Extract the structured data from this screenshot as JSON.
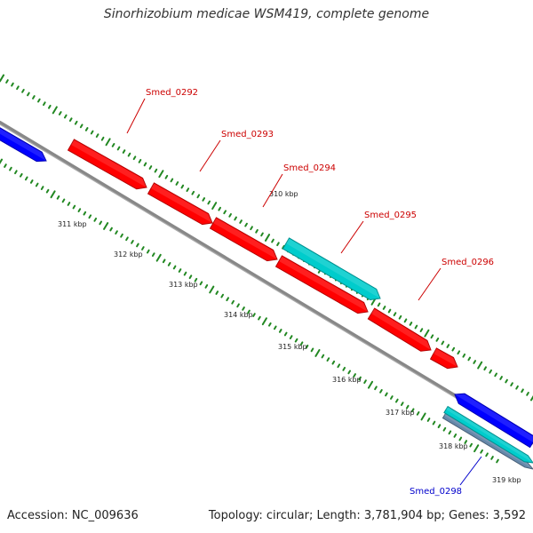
{
  "title": "Sinorhizobium medicae WSM419, complete genome",
  "footer": {
    "accession": "Accession: NC_009636",
    "summary": "Topology: circular; Length: 3,781,904 bp; Genes: 3,592"
  },
  "colors": {
    "forward_gene": "#ff0000",
    "forward_gene_alt": "#00cccc",
    "reverse_gene": "#0000ff",
    "reverse_gene_alt": "#00cccc",
    "backbone": "#888888",
    "ticks": "#228822",
    "forward_label": "#cc0000",
    "reverse_label": "#0000cc"
  },
  "ticks": [
    {
      "label": "310 kbp"
    },
    {
      "label": "311 kbp"
    },
    {
      "label": "312 kbp"
    },
    {
      "label": "313 kbp"
    },
    {
      "label": "314 kbp"
    },
    {
      "label": "315 kbp"
    },
    {
      "label": "316 kbp"
    },
    {
      "label": "317 kbp"
    },
    {
      "label": "318 kbp"
    },
    {
      "label": "319 kbp"
    }
  ],
  "genes": [
    {
      "name": "Smed_0292",
      "strand": "forward",
      "color_key": "forward_gene",
      "labeled": true
    },
    {
      "name": "Smed_0293",
      "strand": "forward",
      "color_key": "forward_gene",
      "labeled": true
    },
    {
      "name": "Smed_0294",
      "strand": "forward",
      "color_key": "forward_gene",
      "labeled": true
    },
    {
      "name": "Smed_0295",
      "strand": "forward",
      "color_key": "forward_gene_alt",
      "labeled": true
    },
    {
      "name": "Smed_0296",
      "strand": "forward",
      "color_key": "forward_gene",
      "labeled": true
    },
    {
      "name": "Smed_0298",
      "strand": "reverse",
      "color_key": "reverse_gene_alt",
      "labeled": true
    }
  ]
}
